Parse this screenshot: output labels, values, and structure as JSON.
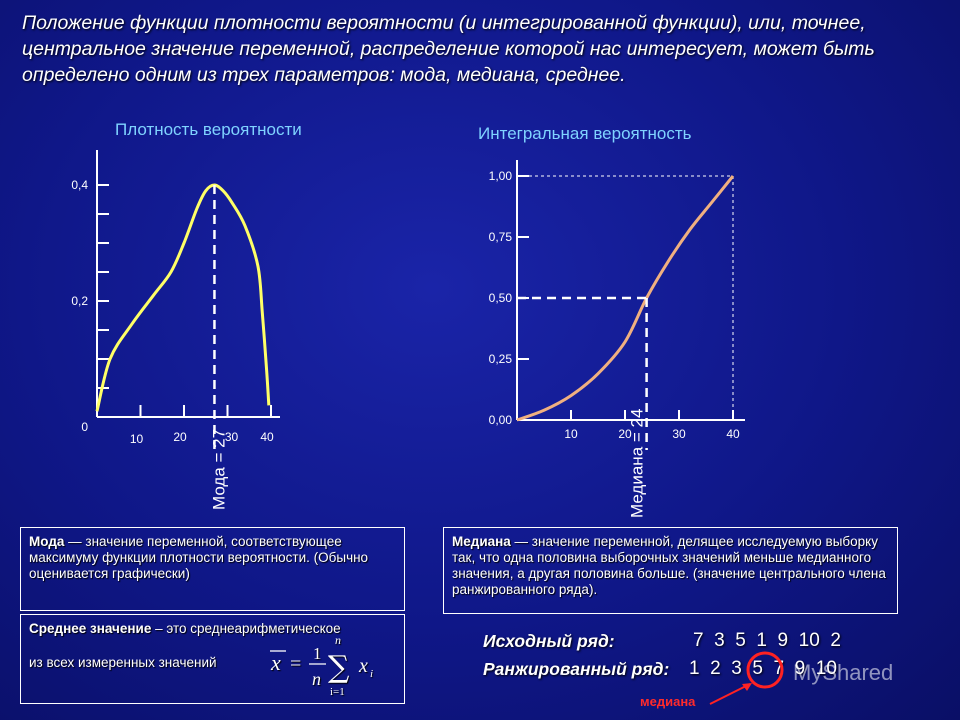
{
  "title": "Положение функции плотности вероятности (и интегрированной функции), или, точнее, центральное значение переменной, распределение которой нас интересует, может быть определено одним из трех параметров: мода, медиана, среднее.",
  "chart_data": [
    {
      "type": "line",
      "title": "Плотность вероятности",
      "x_ticks": [
        "10",
        "20",
        "30",
        "40"
      ],
      "y_ticks": [
        "0",
        "0,2",
        "0,4"
      ],
      "series": [
        {
          "x": [
            0,
            3,
            8,
            13,
            17,
            20,
            23,
            25,
            27,
            29,
            31,
            34,
            37,
            38,
            39,
            39.5
          ],
          "y": [
            0.01,
            0.1,
            0.16,
            0.21,
            0.25,
            0.3,
            0.36,
            0.39,
            0.4,
            0.39,
            0.37,
            0.33,
            0.26,
            0.18,
            0.08,
            0.02
          ]
        }
      ],
      "marker": {
        "x": 27,
        "label": "Мода = 27"
      },
      "color": "#ffff66"
    },
    {
      "type": "line",
      "title": "Интегральная вероятность",
      "x_ticks": [
        "10",
        "20",
        "30",
        "40"
      ],
      "y_ticks": [
        "0,00",
        "0,25",
        "0,50",
        "0,75",
        "1,00"
      ],
      "series": [
        {
          "x": [
            0,
            5,
            10,
            15,
            20,
            24,
            28,
            32,
            36,
            40
          ],
          "y": [
            0.0,
            0.04,
            0.1,
            0.19,
            0.32,
            0.5,
            0.65,
            0.78,
            0.89,
            1.0
          ]
        }
      ],
      "marker": {
        "x": 24,
        "y": 0.5,
        "label": "Медиана = 24"
      },
      "color": "#f0b080"
    }
  ],
  "boxes": {
    "mode": {
      "term": "Мода",
      "text": " — значение переменной, соответствующее максимуму функции плотности вероятности. (Обычно оценивается графически)"
    },
    "median": {
      "term": "Медиана",
      "text": " — значение переменной, делящее исследуемую выборку так, что одна половина выборочных значений меньше медианного значения, а другая половина больше. (значение центрального члена ранжированного ряда)."
    },
    "mean": {
      "term": "Среднее значение",
      "text": " – это среднеарифметическое",
      "text2": "из всех измеренных значений",
      "formula_n": "n",
      "formula_one": "1",
      "formula_i": "i=1",
      "formula_x": "x",
      "formula_sum": "∑"
    }
  },
  "series_rows": {
    "original_label": "Исходный ряд:",
    "original_values": "7  3  5  1  9  10  2",
    "ranked_label": "Ранжированный ряд:",
    "ranked_values": "1  2  3  5  7  9  10",
    "median_tag": "медиана"
  },
  "watermark": "MyShared"
}
